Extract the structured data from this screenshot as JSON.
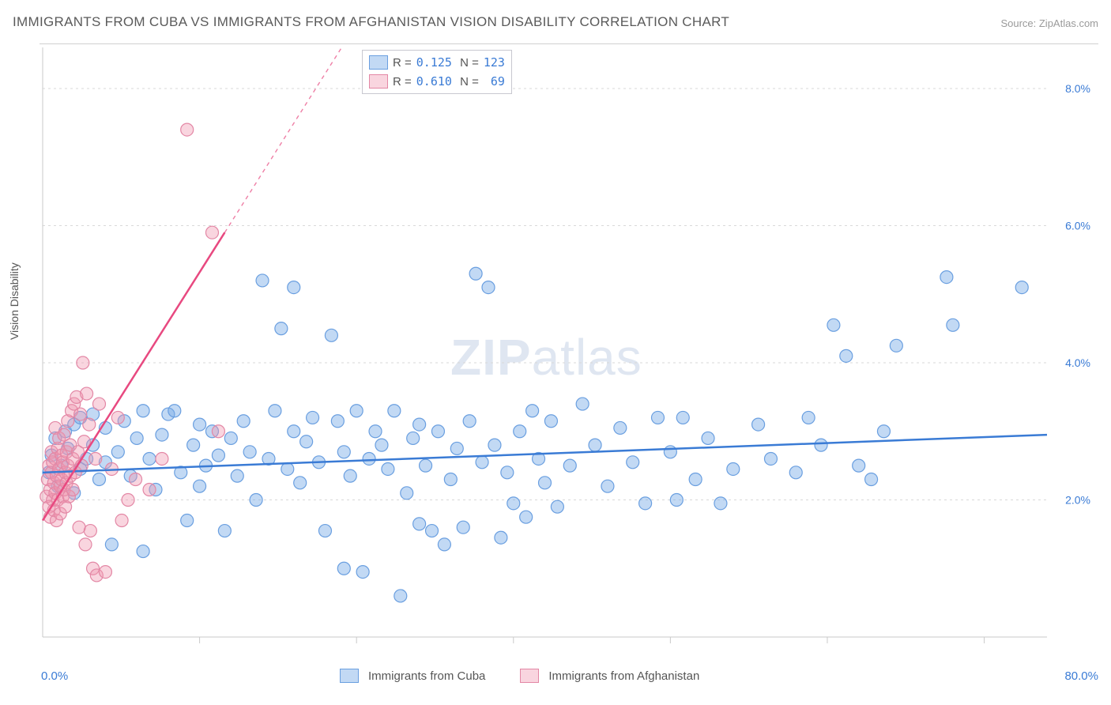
{
  "title": "IMMIGRANTS FROM CUBA VS IMMIGRANTS FROM AFGHANISTAN VISION DISABILITY CORRELATION CHART",
  "source": "Source: ZipAtlas.com",
  "y_axis_label": "Vision Disability",
  "watermark": "ZIPatlas",
  "chart": {
    "type": "scatter",
    "background_color": "#ffffff",
    "grid_color": "#d8d8d8",
    "axis_color": "#cacaca",
    "x_range": [
      0,
      80
    ],
    "y_range": [
      0,
      8.6
    ],
    "y_ticks": [
      {
        "v": 2.0,
        "l": "2.0%"
      },
      {
        "v": 4.0,
        "l": "4.0%"
      },
      {
        "v": 6.0,
        "l": "6.0%"
      },
      {
        "v": 8.0,
        "l": "8.0%"
      }
    ],
    "x_origin_label": "0.0%",
    "x_max_label": "80.0%",
    "x_ticks_minor": [
      12.5,
      25,
      37.5,
      50,
      62.5,
      75
    ],
    "series": [
      {
        "name": "Immigrants from Cuba",
        "color_fill": "rgba(120,170,230,0.45)",
        "color_stroke": "#6a9fe0",
        "marker_radius": 8,
        "trend": {
          "x1": 0,
          "y1": 2.4,
          "x2": 80,
          "y2": 2.95,
          "dashed_extension": null,
          "color": "#3a7bd5",
          "width": 2.5
        },
        "R": "0.125",
        "N": "123",
        "points": [
          [
            0.5,
            2.4
          ],
          [
            0.7,
            2.65
          ],
          [
            1.0,
            2.9
          ],
          [
            1.2,
            2.2
          ],
          [
            1.5,
            2.5
          ],
          [
            1.8,
            3.0
          ],
          [
            2.0,
            2.75
          ],
          [
            2.5,
            2.1
          ],
          [
            2.5,
            3.1
          ],
          [
            3.0,
            2.45
          ],
          [
            3.0,
            3.2
          ],
          [
            3.5,
            2.6
          ],
          [
            4.0,
            3.25
          ],
          [
            4.0,
            2.8
          ],
          [
            4.5,
            2.3
          ],
          [
            5.0,
            2.55
          ],
          [
            5.0,
            3.05
          ],
          [
            5.5,
            1.35
          ],
          [
            6.0,
            2.7
          ],
          [
            6.5,
            3.15
          ],
          [
            7.0,
            2.35
          ],
          [
            7.5,
            2.9
          ],
          [
            8.0,
            3.3
          ],
          [
            8.0,
            1.25
          ],
          [
            8.5,
            2.6
          ],
          [
            9.0,
            2.15
          ],
          [
            9.5,
            2.95
          ],
          [
            10.0,
            3.25
          ],
          [
            10.5,
            3.3
          ],
          [
            11.0,
            2.4
          ],
          [
            11.5,
            1.7
          ],
          [
            12.0,
            2.8
          ],
          [
            12.5,
            3.1
          ],
          [
            12.5,
            2.2
          ],
          [
            13.0,
            2.5
          ],
          [
            13.5,
            3.0
          ],
          [
            14.0,
            2.65
          ],
          [
            14.5,
            1.55
          ],
          [
            15.0,
            2.9
          ],
          [
            15.5,
            2.35
          ],
          [
            16.0,
            3.15
          ],
          [
            16.5,
            2.7
          ],
          [
            17.0,
            2.0
          ],
          [
            17.5,
            5.2
          ],
          [
            18.0,
            2.6
          ],
          [
            18.5,
            3.3
          ],
          [
            19.0,
            4.5
          ],
          [
            19.5,
            2.45
          ],
          [
            20.0,
            5.1
          ],
          [
            20.0,
            3.0
          ],
          [
            20.5,
            2.25
          ],
          [
            21.0,
            2.85
          ],
          [
            21.5,
            3.2
          ],
          [
            22.0,
            2.55
          ],
          [
            22.5,
            1.55
          ],
          [
            23.0,
            4.4
          ],
          [
            23.5,
            3.15
          ],
          [
            24.0,
            2.7
          ],
          [
            24.0,
            1.0
          ],
          [
            24.5,
            2.35
          ],
          [
            25.0,
            3.3
          ],
          [
            25.5,
            0.95
          ],
          [
            26.0,
            2.6
          ],
          [
            26.5,
            3.0
          ],
          [
            27.0,
            2.8
          ],
          [
            27.5,
            2.45
          ],
          [
            28.0,
            3.3
          ],
          [
            28.5,
            0.6
          ],
          [
            29.0,
            2.1
          ],
          [
            29.5,
            2.9
          ],
          [
            30.0,
            1.65
          ],
          [
            30.0,
            3.1
          ],
          [
            30.5,
            2.5
          ],
          [
            31.0,
            1.55
          ],
          [
            31.5,
            3.0
          ],
          [
            32.0,
            1.35
          ],
          [
            32.5,
            2.3
          ],
          [
            33.0,
            2.75
          ],
          [
            33.5,
            1.6
          ],
          [
            34.0,
            3.15
          ],
          [
            34.5,
            5.3
          ],
          [
            35.0,
            2.55
          ],
          [
            35.5,
            5.1
          ],
          [
            36.0,
            2.8
          ],
          [
            36.5,
            1.45
          ],
          [
            37.0,
            2.4
          ],
          [
            37.5,
            1.95
          ],
          [
            38.0,
            3.0
          ],
          [
            38.5,
            1.75
          ],
          [
            39.0,
            3.3
          ],
          [
            39.5,
            2.6
          ],
          [
            40.0,
            2.25
          ],
          [
            40.5,
            3.15
          ],
          [
            41.0,
            1.9
          ],
          [
            42.0,
            2.5
          ],
          [
            43.0,
            3.4
          ],
          [
            44.0,
            2.8
          ],
          [
            45.0,
            2.2
          ],
          [
            46.0,
            3.05
          ],
          [
            47.0,
            2.55
          ],
          [
            48.0,
            1.95
          ],
          [
            49.0,
            3.2
          ],
          [
            50.0,
            2.7
          ],
          [
            50.5,
            2.0
          ],
          [
            51.0,
            3.2
          ],
          [
            52.0,
            2.3
          ],
          [
            53.0,
            2.9
          ],
          [
            54.0,
            1.95
          ],
          [
            55.0,
            2.45
          ],
          [
            57.0,
            3.1
          ],
          [
            58.0,
            2.6
          ],
          [
            60.0,
            2.4
          ],
          [
            61.0,
            3.2
          ],
          [
            62.0,
            2.8
          ],
          [
            63.0,
            4.55
          ],
          [
            64.0,
            4.1
          ],
          [
            65.0,
            2.5
          ],
          [
            66.0,
            2.3
          ],
          [
            67.0,
            3.0
          ],
          [
            68.0,
            4.25
          ],
          [
            72.0,
            5.25
          ],
          [
            72.5,
            4.55
          ],
          [
            78.0,
            5.1
          ]
        ]
      },
      {
        "name": "Immigrants from Afghanistan",
        "color_fill": "rgba(240,150,175,0.40)",
        "color_stroke": "#e387a5",
        "marker_radius": 8,
        "trend": {
          "x1": 0,
          "y1": 1.7,
          "x2": 14.5,
          "y2": 5.9,
          "dashed_extension": {
            "x2": 29,
            "y2": 10.1
          },
          "color": "#e84980",
          "width": 2.5
        },
        "R": "0.610",
        "N": "69",
        "points": [
          [
            0.3,
            2.05
          ],
          [
            0.4,
            2.3
          ],
          [
            0.5,
            1.9
          ],
          [
            0.5,
            2.5
          ],
          [
            0.6,
            2.15
          ],
          [
            0.6,
            1.75
          ],
          [
            0.7,
            2.4
          ],
          [
            0.7,
            2.7
          ],
          [
            0.8,
            2.0
          ],
          [
            0.8,
            2.55
          ],
          [
            0.9,
            2.25
          ],
          [
            0.9,
            1.85
          ],
          [
            1.0,
            2.6
          ],
          [
            1.0,
            2.1
          ],
          [
            1.0,
            3.05
          ],
          [
            1.1,
            2.35
          ],
          [
            1.1,
            1.7
          ],
          [
            1.2,
            2.75
          ],
          [
            1.2,
            2.0
          ],
          [
            1.3,
            2.45
          ],
          [
            1.3,
            2.9
          ],
          [
            1.4,
            2.2
          ],
          [
            1.4,
            1.8
          ],
          [
            1.5,
            2.65
          ],
          [
            1.5,
            2.3
          ],
          [
            1.6,
            2.05
          ],
          [
            1.6,
            2.55
          ],
          [
            1.7,
            2.95
          ],
          [
            1.7,
            2.15
          ],
          [
            1.8,
            2.4
          ],
          [
            1.8,
            1.9
          ],
          [
            1.9,
            2.7
          ],
          [
            1.9,
            2.25
          ],
          [
            2.0,
            3.15
          ],
          [
            2.0,
            2.5
          ],
          [
            2.1,
            2.05
          ],
          [
            2.2,
            2.8
          ],
          [
            2.2,
            2.35
          ],
          [
            2.3,
            3.3
          ],
          [
            2.4,
            2.6
          ],
          [
            2.4,
            2.15
          ],
          [
            2.5,
            3.4
          ],
          [
            2.6,
            2.4
          ],
          [
            2.7,
            3.5
          ],
          [
            2.8,
            2.7
          ],
          [
            2.9,
            1.6
          ],
          [
            3.0,
            3.25
          ],
          [
            3.1,
            2.5
          ],
          [
            3.2,
            4.0
          ],
          [
            3.3,
            2.85
          ],
          [
            3.4,
            1.35
          ],
          [
            3.5,
            3.55
          ],
          [
            3.7,
            3.1
          ],
          [
            3.8,
            1.55
          ],
          [
            4.0,
            1.0
          ],
          [
            4.2,
            2.6
          ],
          [
            4.3,
            0.9
          ],
          [
            4.5,
            3.4
          ],
          [
            5.0,
            0.95
          ],
          [
            5.5,
            2.45
          ],
          [
            6.0,
            3.2
          ],
          [
            6.3,
            1.7
          ],
          [
            6.8,
            2.0
          ],
          [
            7.4,
            2.3
          ],
          [
            8.5,
            2.15
          ],
          [
            9.5,
            2.6
          ],
          [
            11.5,
            7.4
          ],
          [
            13.5,
            5.9
          ],
          [
            14.0,
            3.0
          ]
        ]
      }
    ]
  },
  "legend_bottom": [
    {
      "swatch_fill": "rgba(120,170,230,0.45)",
      "swatch_stroke": "#6a9fe0",
      "label": "Immigrants from Cuba"
    },
    {
      "swatch_fill": "rgba(240,150,175,0.40)",
      "swatch_stroke": "#e387a5",
      "label": "Immigrants from Afghanistan"
    }
  ]
}
